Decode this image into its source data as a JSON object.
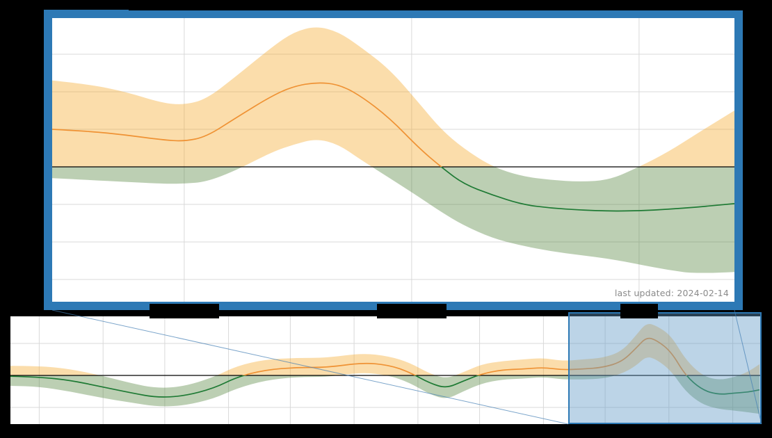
{
  "figure": {
    "kind": "effective reproduction number (Rt) chart with zoomed inset",
    "background": "#000000",
    "title_redacted": true
  },
  "main_chart": {
    "last_updated": "last updated: 2024-02-14",
    "x_tick_labels": "redacted (3 black bars)",
    "y_tick_labels": "redacted (8 black bars)"
  },
  "overview_chart": {
    "x_tick_labels": "redacted (12 black bars)"
  },
  "colors": {
    "frame_blue": "#2d79b5",
    "above_one_line": "#ef9234",
    "above_one_band": "rgba(245,166,35,0.38)",
    "below_one_line": "#1e7a34",
    "below_one_band": "rgba(80,130,55,0.38)",
    "grid": "#d9d9d9",
    "reference_line": "#000000",
    "highlight_fill": "rgba(95,152,198,0.42)",
    "highlight_edge": "#2d79b5",
    "connector": "rgba(65,125,180,0.7)",
    "muted_text": "#8a8a8a",
    "redaction": "#000000",
    "plot_background": "#ffffff"
  },
  "chart_data": [
    {
      "type": "area",
      "name": "rt-detail-zoomed",
      "description": "Zoomed window (matches highlighted region of overview). Median line with credible-interval band; colored orange above reference line 1.0, green below.",
      "x_unit": "days within zoom window (date tick labels redacted)",
      "xlim": [
        0,
        93
      ],
      "ylim": [
        0.6407,
        1.3963
      ],
      "reference_line": 1.0,
      "x_gridlines": [
        18,
        49,
        80
      ],
      "y_gridlines": [
        0.7,
        0.8,
        0.9,
        1.0,
        1.1,
        1.2,
        1.3
      ],
      "y_ticks_estimated": [
        0.7,
        0.8,
        0.9,
        1.0,
        1.1,
        1.2,
        1.3,
        1.4
      ],
      "x": [
        0,
        5,
        10,
        15,
        18,
        21,
        25,
        30,
        33,
        36,
        39,
        42,
        46,
        50,
        53,
        56,
        60,
        64,
        68,
        72,
        76,
        80,
        84,
        88,
        93
      ],
      "series": [
        {
          "name": "median",
          "values": [
            1.1,
            1.095,
            1.085,
            1.072,
            1.068,
            1.08,
            1.13,
            1.19,
            1.215,
            1.225,
            1.22,
            1.19,
            1.13,
            1.05,
            1.0,
            0.955,
            0.925,
            0.9,
            0.89,
            0.885,
            0.882,
            0.883,
            0.887,
            0.893,
            0.902
          ]
        },
        {
          "name": "upper",
          "values": [
            1.23,
            1.22,
            1.2,
            1.17,
            1.165,
            1.18,
            1.24,
            1.32,
            1.36,
            1.375,
            1.36,
            1.32,
            1.26,
            1.17,
            1.1,
            1.05,
            1.0,
            0.975,
            0.965,
            0.96,
            0.965,
            1.0,
            1.04,
            1.09,
            1.15
          ]
        },
        {
          "name": "lower",
          "values": [
            0.97,
            0.965,
            0.96,
            0.955,
            0.955,
            0.96,
            0.99,
            1.04,
            1.06,
            1.075,
            1.06,
            1.02,
            0.97,
            0.92,
            0.88,
            0.845,
            0.81,
            0.79,
            0.775,
            0.765,
            0.755,
            0.74,
            0.725,
            0.715,
            0.72
          ]
        }
      ]
    },
    {
      "type": "area",
      "name": "rt-overview-full-range",
      "description": "Full ~12 month overview strip. Same median/band styling; blue translucent rectangle marks the zoomed window.",
      "x_unit": "days over full range (month tick labels redacted)",
      "xlim": [
        0,
        365
      ],
      "ylim": [
        0.6957,
        1.3696
      ],
      "reference_line": 1.0,
      "x_gridlines": [
        14,
        45,
        75,
        106,
        136,
        167,
        198,
        228,
        259,
        289,
        320,
        351
      ],
      "y_gridlines": [
        0.8,
        1.2
      ],
      "highlight_window": [
        271,
        365
      ],
      "x": [
        0,
        14,
        29,
        44,
        59,
        71,
        84,
        99,
        110,
        124,
        139,
        154,
        171,
        184,
        194,
        204,
        212,
        220,
        229,
        239,
        249,
        259,
        268,
        278,
        288,
        297,
        304,
        309,
        314,
        321,
        328,
        336,
        344,
        352,
        358,
        364
      ],
      "series": [
        {
          "name": "median",
          "values": [
            0.995,
            0.99,
            0.97,
            0.93,
            0.89,
            0.862,
            0.87,
            0.92,
            0.99,
            1.035,
            1.05,
            1.05,
            1.08,
            1.065,
            1.02,
            0.95,
            0.92,
            0.965,
            1.01,
            1.035,
            1.04,
            1.05,
            1.035,
            1.04,
            1.05,
            1.085,
            1.17,
            1.24,
            1.22,
            1.15,
            1.0,
            0.91,
            0.88,
            0.89,
            0.895,
            0.91
          ]
        },
        {
          "name": "upper",
          "values": [
            1.06,
            1.06,
            1.04,
            1.0,
            0.95,
            0.92,
            0.93,
            0.99,
            1.06,
            1.1,
            1.11,
            1.11,
            1.14,
            1.12,
            1.08,
            1.01,
            0.98,
            1.02,
            1.07,
            1.09,
            1.1,
            1.11,
            1.09,
            1.1,
            1.11,
            1.15,
            1.25,
            1.33,
            1.31,
            1.25,
            1.1,
            1.0,
            0.97,
            0.99,
            1.02,
            1.07
          ]
        },
        {
          "name": "lower",
          "values": [
            0.935,
            0.93,
            0.9,
            0.86,
            0.83,
            0.805,
            0.81,
            0.855,
            0.92,
            0.97,
            0.99,
            0.99,
            1.02,
            1.0,
            0.955,
            0.88,
            0.85,
            0.9,
            0.95,
            0.975,
            0.98,
            0.99,
            0.975,
            0.975,
            0.98,
            1.01,
            1.06,
            1.12,
            1.1,
            1.03,
            0.9,
            0.82,
            0.79,
            0.78,
            0.77,
            0.76
          ]
        }
      ]
    }
  ]
}
